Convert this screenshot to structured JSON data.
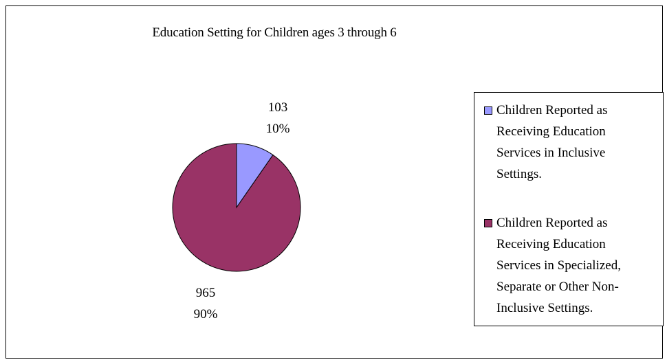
{
  "chart_data": {
    "type": "pie",
    "title": "Education Setting for Children ages 3 through 6",
    "slices": [
      {
        "label": "Children Reported as Receiving Education Services in Inclusive Settings.",
        "legend_lines": [
          "Children Reported as",
          "Receiving Education",
          "Services in Inclusive",
          "Settings."
        ],
        "value": 103,
        "value_label": "103",
        "percent_label": "10%",
        "color": "#9999ff"
      },
      {
        "label": "Children Reported as Receiving Education Services in Specialized, Separate or Other Non-Inclusive Settings.",
        "legend_lines": [
          "Children Reported as",
          "Receiving Education",
          "Services in Specialized,",
          "Separate or Other Non-",
          "Inclusive Settings."
        ],
        "value": 965,
        "value_label": "965",
        "percent_label": "90%",
        "color": "#993366"
      }
    ],
    "legend_position": "right"
  }
}
